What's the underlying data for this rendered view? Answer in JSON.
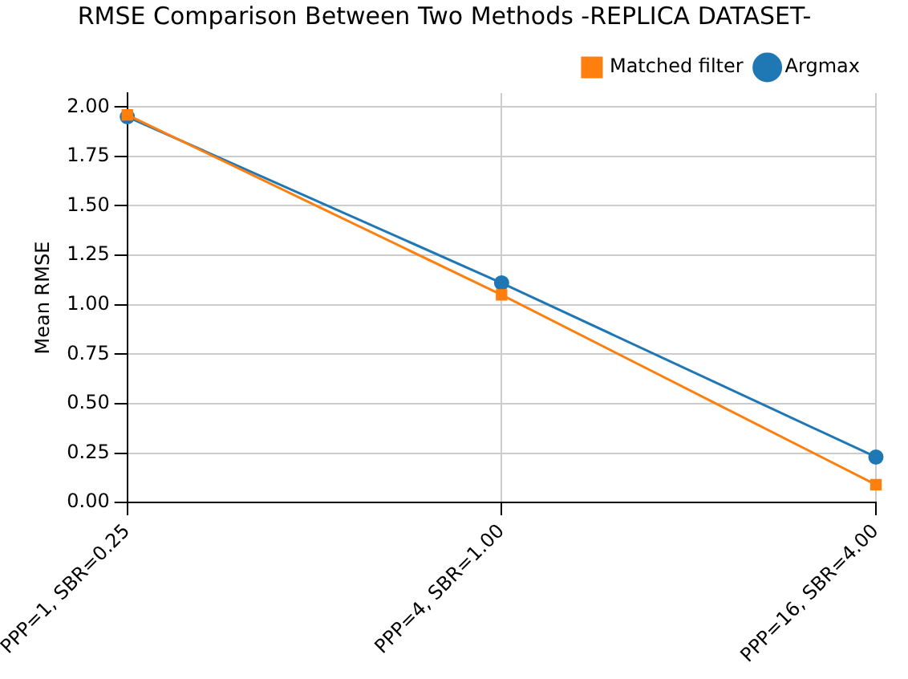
{
  "chart_data": {
    "type": "line",
    "title": "RMSE Comparison Between Two Methods -REPLICA DATASET-",
    "ylabel": "Mean RMSE",
    "categories": [
      "PPP=1, SBR=0.25",
      "PPP=4, SBR=1.00",
      "PPP=16, SBR=4.00"
    ],
    "series": [
      {
        "name": "Argmax",
        "color": "#1f77b4",
        "marker": "circle",
        "values": [
          1.95,
          1.11,
          0.23
        ]
      },
      {
        "name": "Matched filter",
        "color": "#ff7f0e",
        "marker": "square",
        "values": [
          1.96,
          1.05,
          0.09
        ]
      }
    ],
    "ylim": [
      0,
      2.07
    ],
    "yticks": [
      {
        "value": 0,
        "label": "0.00"
      },
      {
        "value": 0.25,
        "label": "0.25"
      },
      {
        "value": 0.5,
        "label": "0.50"
      },
      {
        "value": 0.75,
        "label": "0.75"
      },
      {
        "value": 1,
        "label": "1.00"
      },
      {
        "value": 1.25,
        "label": "1.25"
      },
      {
        "value": 1.5,
        "label": "1.50"
      },
      {
        "value": 1.75,
        "label": "1.75"
      },
      {
        "value": 2,
        "label": "2.00"
      }
    ],
    "grid": true,
    "legend": "top right",
    "line_style": "solid"
  }
}
